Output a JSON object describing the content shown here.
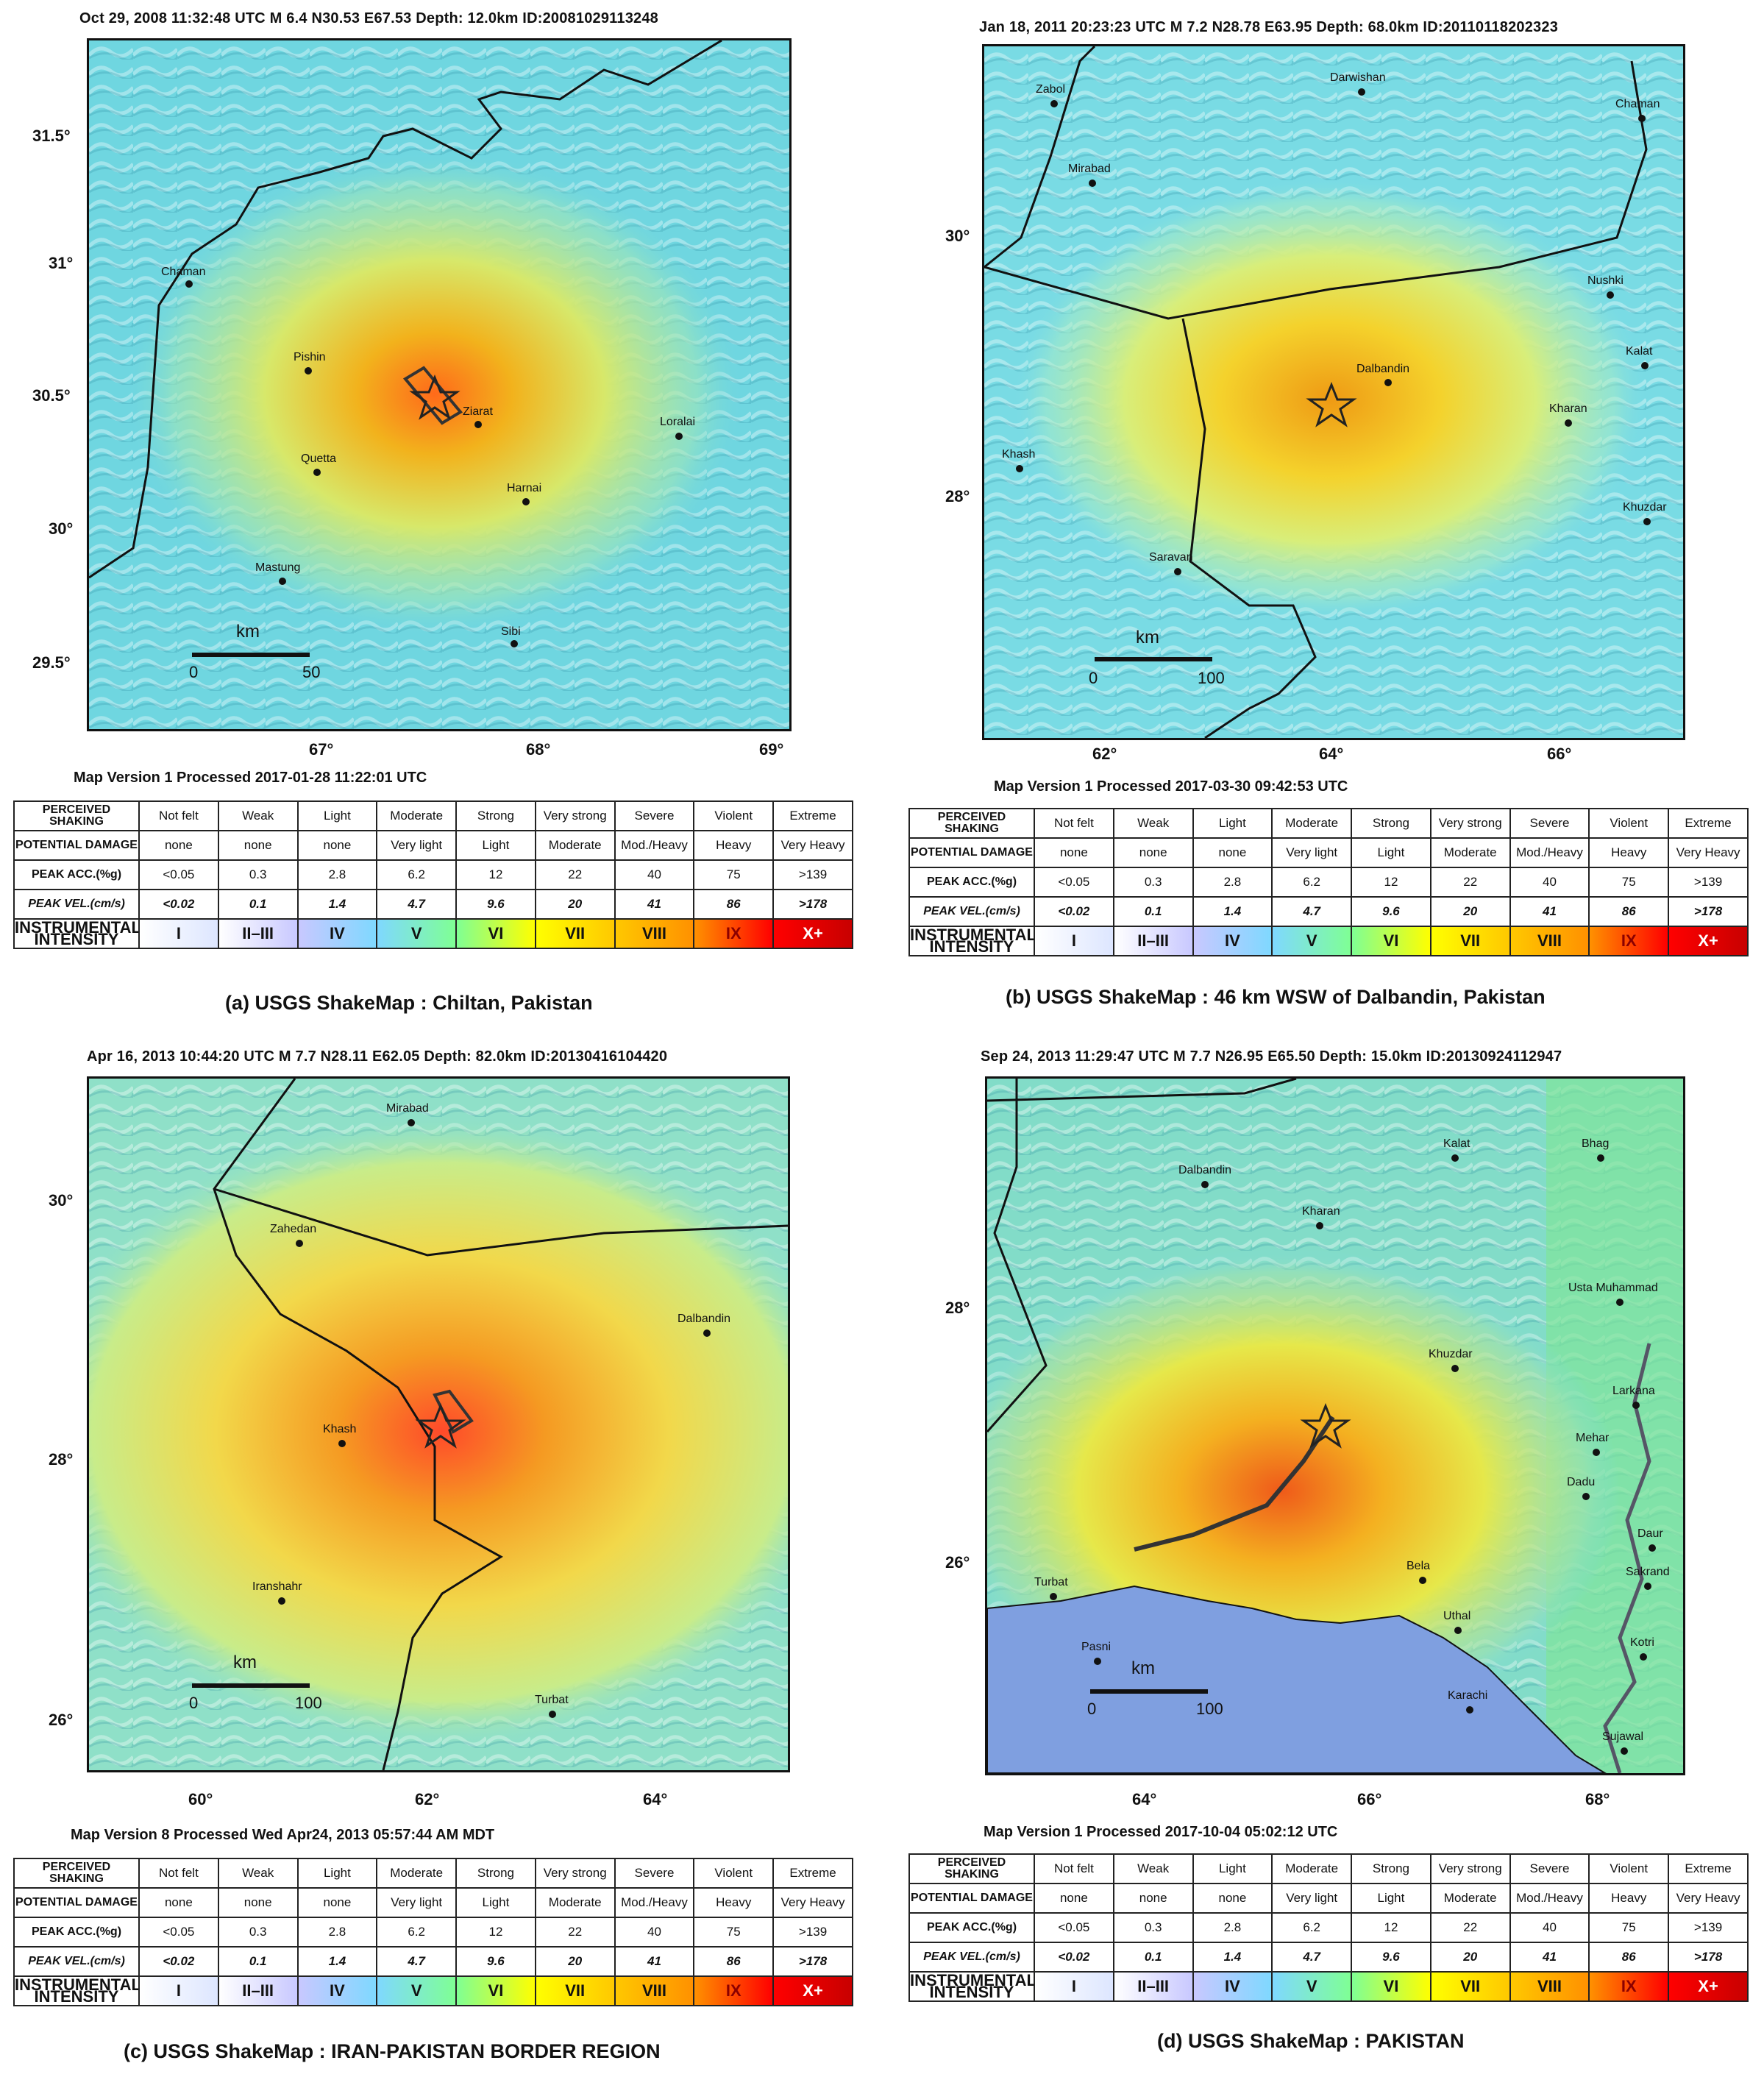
{
  "colors": {
    "intensity": [
      "#ffffff",
      "#c8c8ff",
      "#7fd8ff",
      "#7fff94",
      "#ffff00",
      "#ffc800",
      "#ff9100",
      "#ff0000",
      "#c80000"
    ],
    "land_low": "#6fd6e0",
    "land_mid": "#b9f0b0",
    "ocean": "#7f9fe0",
    "border": "#111111"
  },
  "legend": {
    "rows": [
      {
        "head": "PERCEIVED SHAKING",
        "cells": [
          "Not felt",
          "Weak",
          "Light",
          "Moderate",
          "Strong",
          "Very strong",
          "Severe",
          "Violent",
          "Extreme"
        ]
      },
      {
        "head": "POTENTIAL DAMAGE",
        "cells": [
          "none",
          "none",
          "none",
          "Very light",
          "Light",
          "Moderate",
          "Mod./Heavy",
          "Heavy",
          "Very Heavy"
        ]
      },
      {
        "head": "PEAK ACC.(%g)",
        "cells": [
          "<0.05",
          "0.3",
          "2.8",
          "6.2",
          "12",
          "22",
          "40",
          "75",
          ">139"
        ]
      },
      {
        "head": "PEAK VEL.(cm/s)",
        "cells": [
          "<0.02",
          "0.1",
          "1.4",
          "4.7",
          "9.6",
          "20",
          "41",
          "86",
          ">178"
        ]
      },
      {
        "head": "INSTRUMENTAL INTENSITY",
        "cells": [
          "I",
          "II–III",
          "IV",
          "V",
          "VI",
          "VII",
          "VIII",
          "IX",
          "X+"
        ]
      }
    ]
  },
  "panels": [
    {
      "header": "Oct 29, 2008 11:32:48 UTC   M 6.4   N30.53 E67.53   Depth: 12.0km   ID:20081029113248",
      "version": "Map Version 1 Processed 2017-01-28 11:22:01 UTC",
      "caption": "(a)   USGS ShakeMap : Chiltan, Pakistan",
      "lat_ticks": [
        "31.5°",
        "31°",
        "30.5°",
        "30°",
        "29.5°"
      ],
      "lon_ticks": [
        "67°",
        "68°",
        "69°"
      ],
      "scale": {
        "unit": "km",
        "start": "0",
        "end": "50"
      },
      "cities": [
        "Chaman",
        "Pishin",
        "Ziarat",
        "Quetta",
        "Harnai",
        "Loralai",
        "Mastung",
        "Sibi"
      ]
    },
    {
      "header": "Jan 18, 2011 20:23:23 UTC   M 7.2   N28.78 E63.95   Depth: 68.0km   ID:20110118202323",
      "version": "Map Version 1 Processed 2017-03-30 09:42:53 UTC",
      "caption": "(b)   USGS ShakeMap :   46 km WSW of Dalbandin, Pakistan",
      "lat_ticks": [
        "30°",
        "28°"
      ],
      "lon_ticks": [
        "62°",
        "64°",
        "66°"
      ],
      "scale": {
        "unit": "km",
        "start": "0",
        "end": "100"
      },
      "cities": [
        "Zabol",
        "Darwishan",
        "Chaman",
        "Mirabad",
        "Nushki",
        "Dalbandin",
        "Kalat",
        "Kharan",
        "Khash",
        "Khuzdar",
        "Saravan"
      ]
    },
    {
      "header": "Apr 16, 2013 10:44:20 UTC   M 7.7   N28.11 E62.05   Depth: 82.0km   ID:20130416104420",
      "version": "Map Version 8 Processed Wed Apr24, 2013 05:57:44 AM MDT",
      "caption": "(c)   USGS ShakeMap :  IRAN-PAKISTAN BORDER REGION",
      "lat_ticks": [
        "30°",
        "28°",
        "26°"
      ],
      "lon_ticks": [
        "60°",
        "62°",
        "64°"
      ],
      "scale": {
        "unit": "km",
        "start": "0",
        "end": "100"
      },
      "cities": [
        "Mirabad",
        "Zahedan",
        "Dalbandin",
        "Khash",
        "Iranshahr",
        "Turbat"
      ]
    },
    {
      "header": "Sep 24, 2013 11:29:47 UTC   M 7.7   N26.95 E65.50   Depth: 15.0km   ID:20130924112947",
      "version": "Map Version 1 Processed 2017-10-04 05:02:12 UTC",
      "caption": "(d)   USGS ShakeMap :  PAKISTAN",
      "lat_ticks": [
        "28°",
        "26°"
      ],
      "lon_ticks": [
        "64°",
        "66°",
        "68°"
      ],
      "scale": {
        "unit": "km",
        "start": "0",
        "end": "100"
      },
      "cities": [
        "Dalbandin",
        "Kalat",
        "Bhag",
        "Kharan",
        "Usta Muhammad",
        "Khuzdar",
        "Larkana",
        "Mehar",
        "Dadu",
        "Daur",
        "Bela",
        "Sakrand",
        "Turbat",
        "Uthal",
        "Kotri",
        "Pasni",
        "Karachi",
        "Sujawal"
      ]
    }
  ]
}
